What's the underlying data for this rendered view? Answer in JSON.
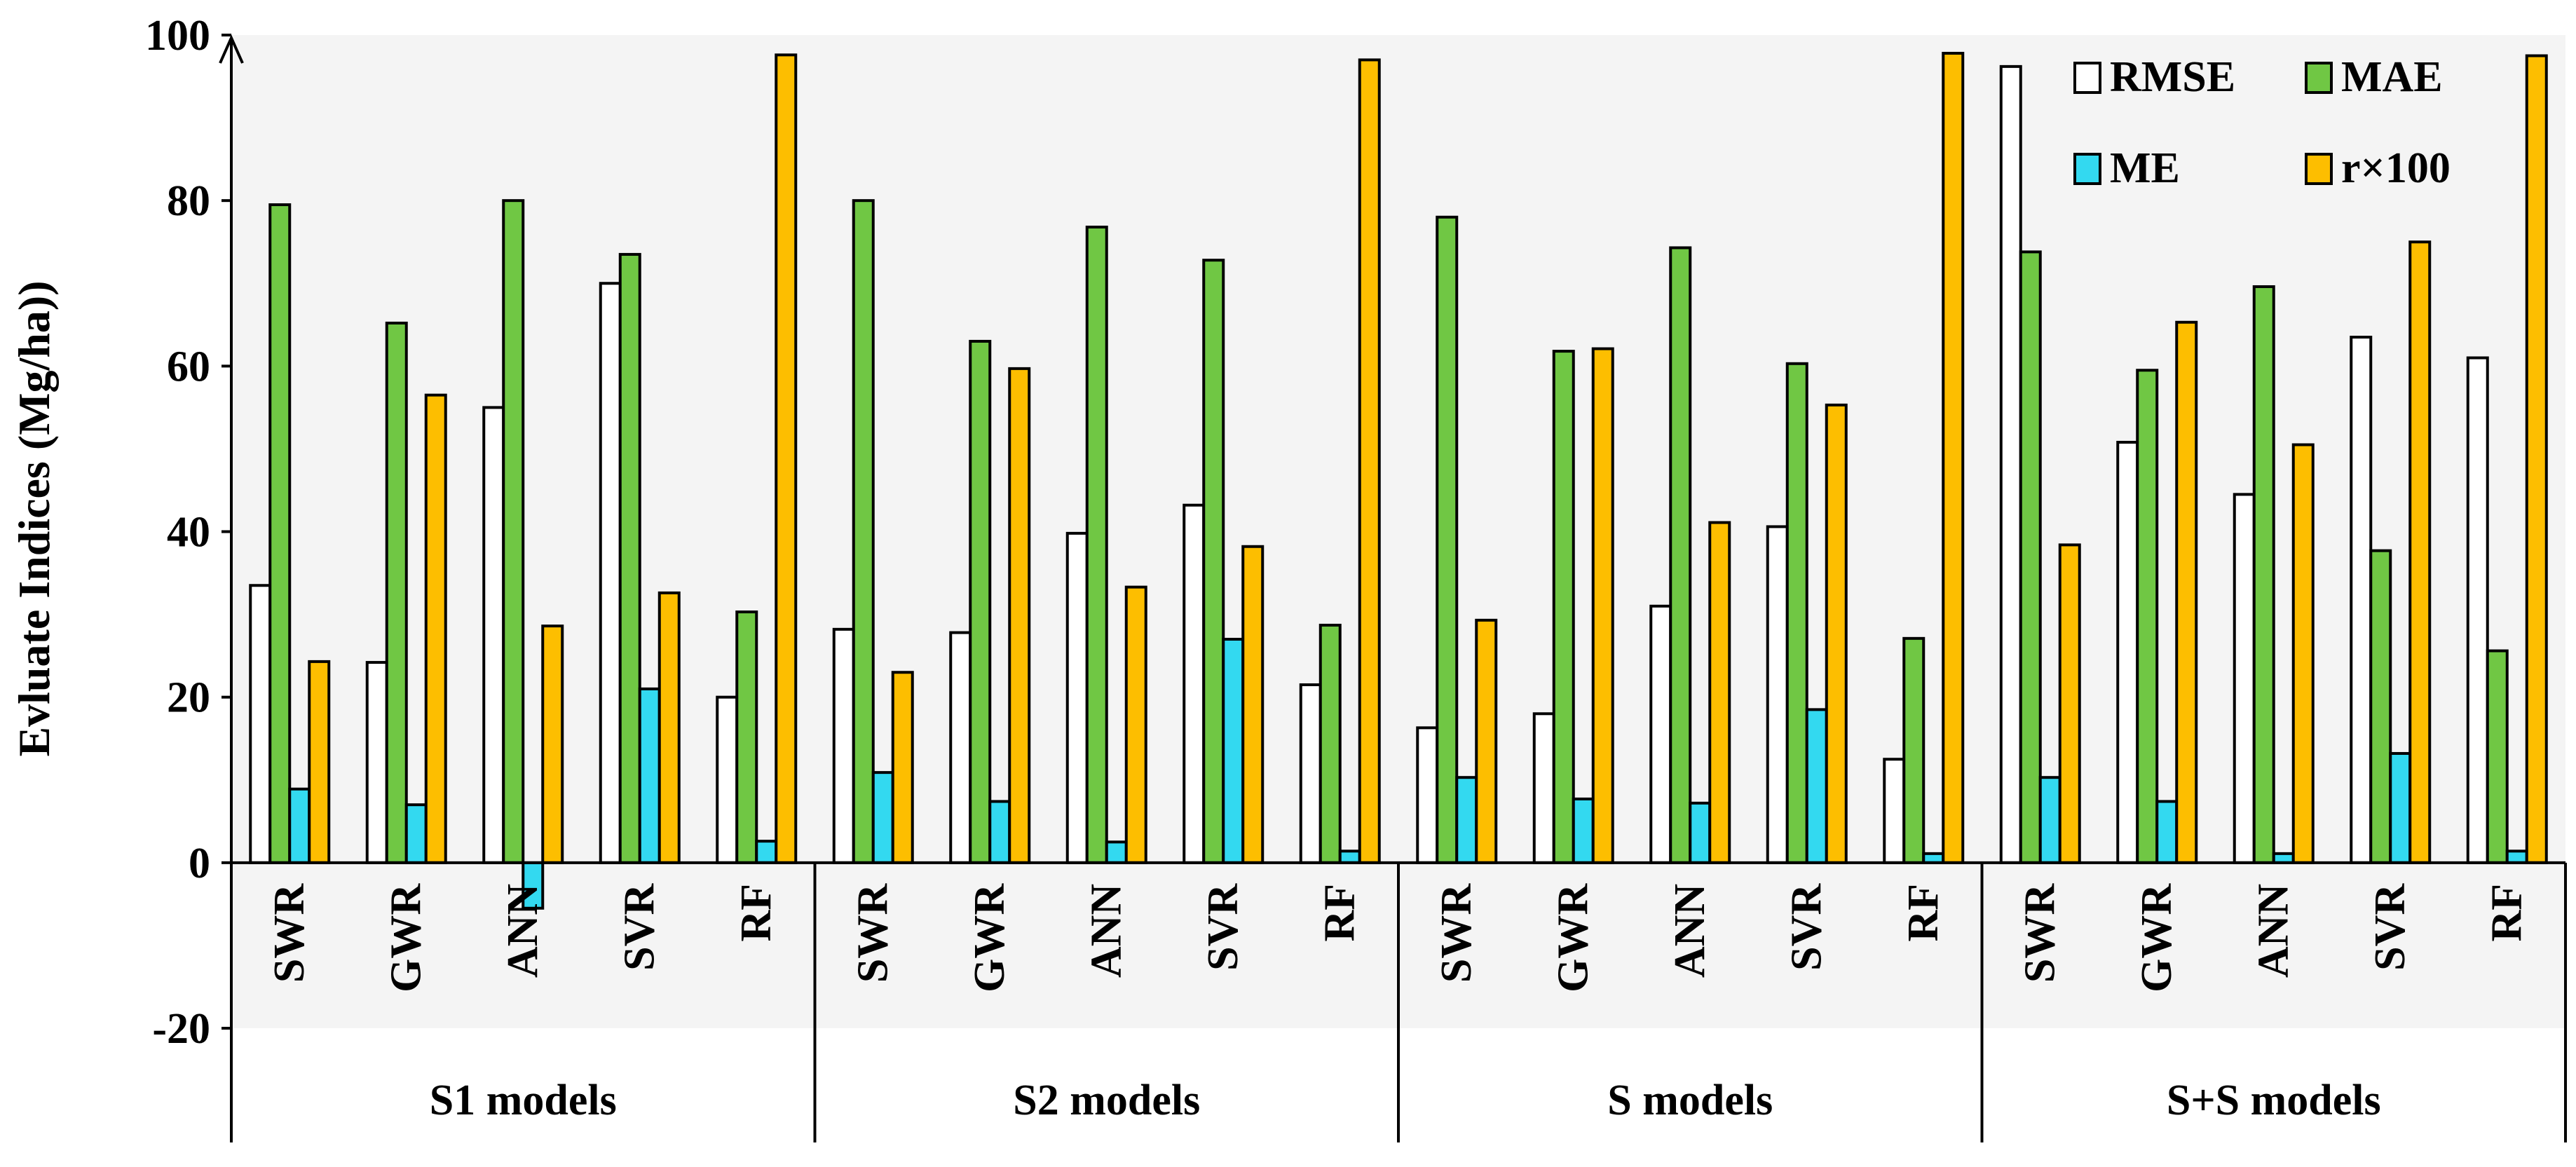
{
  "chart_data": {
    "type": "bar",
    "ylabel": "Evluate Indices (Mg/ha))",
    "ylim": [
      -20,
      100
    ],
    "yticks": [
      -20,
      0,
      20,
      40,
      60,
      80,
      100
    ],
    "groups": [
      {
        "name": "S1 models",
        "categories": [
          "SWR",
          "GWR",
          "ANN",
          "SVR",
          "RF"
        ]
      },
      {
        "name": "S2 models",
        "categories": [
          "SWR",
          "GWR",
          "ANN",
          "SVR",
          "RF"
        ]
      },
      {
        "name": "S models",
        "categories": [
          "SWR",
          "GWR",
          "ANN",
          "SVR",
          "RF"
        ]
      },
      {
        "name": "S+S models",
        "categories": [
          "SWR",
          "GWR",
          "ANN",
          "SVR",
          "RF"
        ]
      }
    ],
    "series": [
      {
        "name": "RMSE",
        "color": "#ffffff",
        "values": [
          33.5,
          24.2,
          55.0,
          70.0,
          20.0,
          28.2,
          27.8,
          39.8,
          43.2,
          21.5,
          16.3,
          18.0,
          31.0,
          40.6,
          12.5,
          96.2,
          50.8,
          44.5,
          63.5,
          61.0
        ]
      },
      {
        "name": "MAE",
        "color": "#70c744",
        "values": [
          79.5,
          65.2,
          80.0,
          73.5,
          30.3,
          80.0,
          63.0,
          76.8,
          72.8,
          28.7,
          78.0,
          61.8,
          74.3,
          60.3,
          27.1,
          73.8,
          59.5,
          69.6,
          37.7,
          25.6
        ]
      },
      {
        "name": "ME",
        "color": "#33d9f0",
        "values": [
          8.9,
          7.0,
          -5.5,
          21.0,
          2.6,
          10.9,
          7.4,
          2.5,
          27.0,
          1.4,
          10.3,
          7.7,
          7.2,
          18.5,
          1.1,
          10.3,
          7.4,
          1.1,
          13.2,
          1.4
        ]
      },
      {
        "name": "r×100",
        "color": "#fdbe00",
        "values": [
          24.3,
          56.5,
          28.6,
          32.6,
          97.6,
          23.0,
          59.7,
          33.3,
          38.2,
          97.0,
          29.3,
          62.1,
          41.1,
          55.3,
          97.8,
          38.4,
          65.3,
          50.5,
          75.0,
          97.5
        ]
      }
    ],
    "legend_position": "top-right",
    "grid": false
  }
}
